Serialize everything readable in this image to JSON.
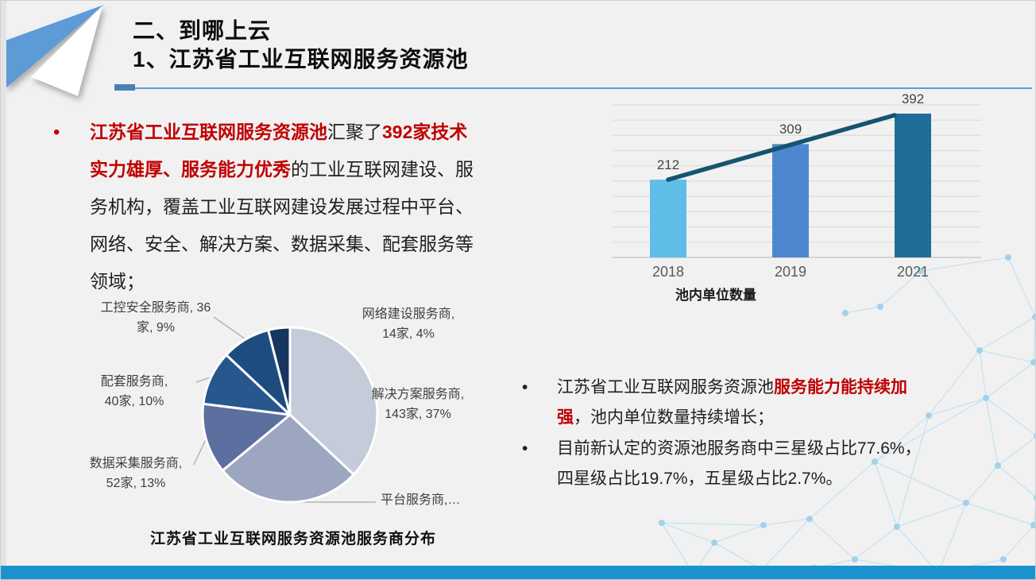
{
  "slide": {
    "title_line1": "二、到哪上云",
    "title_line2": "1、江苏省工业互联网服务资源池",
    "bullet_char": "•",
    "accent_color": "#5B9BD5",
    "footer_bar_color": "#1C92CE",
    "emphasis_color": "#C00000",
    "background_color": "#F1F1F2"
  },
  "intro": {
    "seg1": "江苏省工业互联网服务资源池",
    "seg2": "汇聚了",
    "seg3": "392家技术实力雄厚、服务能力优秀",
    "seg4": "的工业互联网建设、服务机构，覆盖工业互联网建设发展过程中平台、网络、安全、解决方案、数据采集、配套服务等领域；"
  },
  "notes": {
    "b1_seg1": "江苏省工业互联网服务资源池",
    "b1_seg2": "服务能力能持续加强",
    "b1_seg3": "，池内单位数量持续增长；",
    "b2": "目前新认定的资源池服务商中三星级占比77.6%，四星级占比19.7%，五星级占比2.7%。"
  },
  "chart_data": [
    {
      "type": "bar",
      "title": "池内单位数量",
      "categories": [
        "2018",
        "2019",
        "2021"
      ],
      "values": [
        212,
        309,
        392
      ],
      "bar_colors": [
        "#5FBDE8",
        "#4E87CE",
        "#1F6E99"
      ],
      "trend_line": {
        "from": "2018",
        "to": "2021",
        "color": "#15546E"
      },
      "ylim": [
        0,
        420
      ],
      "grid": true,
      "data_labels": true,
      "legend": "none"
    },
    {
      "type": "pie",
      "title": "江苏省工业互联网服务资源池服务商分布",
      "start_angle": "12-oclock",
      "direction": "clockwise",
      "label_color": "#3f3f3f",
      "slices": [
        {
          "name": "解决方案服务商",
          "label_line1": "解决方案服务商,",
          "label_line2": "143家, 37%",
          "count": 143,
          "pct": 37,
          "color": "#C6CBDA"
        },
        {
          "name": "平台服务商",
          "label_line1": "平台服务商,…",
          "label_line2": "",
          "pct": 27,
          "color": "#9CA6C1"
        },
        {
          "name": "数据采集服务商",
          "label_line1": "数据采集服务商,",
          "label_line2": "52家, 13%",
          "count": 52,
          "pct": 13,
          "color": "#5D6F9E"
        },
        {
          "name": "配套服务商",
          "label_line1": "配套服务商,",
          "label_line2": "40家, 10%",
          "count": 40,
          "pct": 10,
          "color": "#28568F"
        },
        {
          "name": "工控安全服务商",
          "label_line1": "工控安全服务商, 36",
          "label_line2": "家, 9%",
          "count": 36,
          "pct": 9,
          "color": "#1E4C80"
        },
        {
          "name": "网络建设服务商",
          "label_line1": "网络建设服务商,",
          "label_line2": "14家, 4%",
          "count": 14,
          "pct": 4,
          "color": "#16365F"
        }
      ]
    }
  ]
}
